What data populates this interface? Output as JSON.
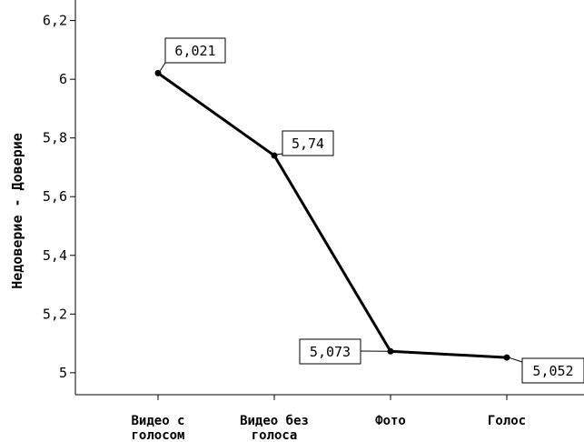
{
  "chart_data": {
    "type": "line",
    "categories": [
      [
        "Видео с",
        "голосом"
      ],
      [
        "Видео без",
        "голоса"
      ],
      [
        "Фото"
      ],
      [
        "Голос"
      ]
    ],
    "values": [
      6.021,
      5.74,
      5.073,
      5.052
    ],
    "data_labels": [
      "6,021",
      "5,74",
      "5,073",
      "5,052"
    ],
    "ylabel": "Недоверие - Доверие",
    "ylim": [
      4.95,
      6.27
    ],
    "yticks": [
      5,
      5.2,
      5.4,
      5.6,
      5.8,
      6,
      6.2
    ],
    "ytick_labels": [
      "5",
      "5,2",
      "5,4",
      "5,6",
      "5,8",
      "6",
      "6,2"
    ],
    "grid": false,
    "line_color": "#000000"
  }
}
